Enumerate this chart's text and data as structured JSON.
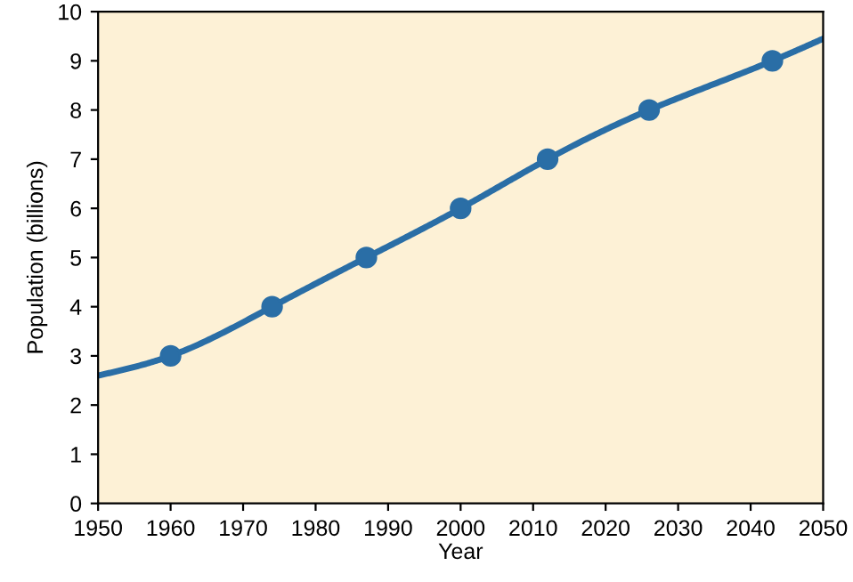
{
  "chart_data": {
    "type": "line",
    "xlabel": "Year",
    "ylabel": "Population (billions)",
    "series": [
      {
        "color": "#2a6ea6",
        "marker": "none",
        "x": [
          1950,
          1960,
          1974,
          1987,
          2000,
          2012,
          2026,
          2043,
          2050
        ],
        "values": [
          2.6,
          3.0,
          4.0,
          5.0,
          6.0,
          7.0,
          8.0,
          9.0,
          9.45
        ]
      },
      {
        "type": "scatter",
        "color": "#2a6ea6",
        "marker": "circle",
        "x": [
          1960,
          1974,
          1987,
          2000,
          2012,
          2026,
          2043
        ],
        "values": [
          3.0,
          4.0,
          5.0,
          6.0,
          7.0,
          8.0,
          9.0
        ]
      }
    ],
    "xlim": [
      1950,
      2050
    ],
    "xticks": [
      1950,
      1960,
      1970,
      1980,
      1990,
      2000,
      2010,
      2020,
      2030,
      2040,
      2050
    ],
    "ylim": [
      0,
      10
    ],
    "yticks": [
      0,
      1,
      2,
      3,
      4,
      5,
      6,
      7,
      8,
      9,
      10
    ],
    "grid": false
  }
}
